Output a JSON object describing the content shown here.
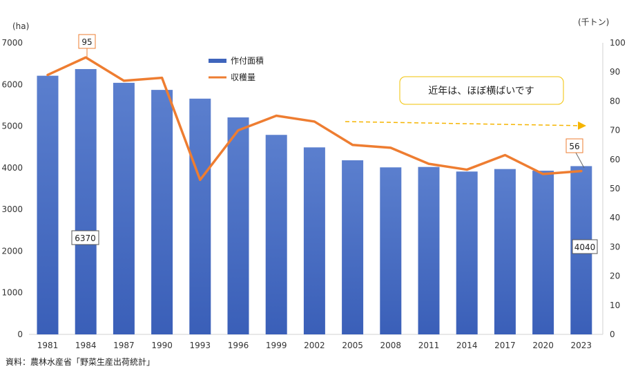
{
  "chart_data": {
    "type": "bar+line",
    "categories": [
      "1981",
      "1984",
      "1987",
      "1990",
      "1993",
      "1996",
      "1999",
      "2002",
      "2005",
      "2008",
      "2011",
      "2014",
      "2017",
      "2020",
      "2023"
    ],
    "series": [
      {
        "name": "作付面積",
        "type": "bar",
        "axis": "left",
        "values": [
          6210,
          6370,
          6040,
          5870,
          5660,
          5210,
          4790,
          4490,
          4180,
          4010,
          4020,
          3910,
          3970,
          3930,
          4040
        ]
      },
      {
        "name": "収穫量",
        "type": "line",
        "axis": "right",
        "values": [
          89,
          95,
          87,
          88,
          53,
          70,
          75,
          73,
          65,
          64,
          58.5,
          56.5,
          61.5,
          55,
          56
        ]
      }
    ],
    "left_axis": {
      "unit": "(ha)",
      "ylim": [
        0,
        7000
      ],
      "ticks": [
        0,
        1000,
        2000,
        3000,
        4000,
        5000,
        6000,
        7000
      ]
    },
    "right_axis": {
      "unit": "(千トン)",
      "ylim": [
        0,
        100
      ],
      "ticks": [
        0,
        10,
        20,
        30,
        40,
        50,
        60,
        70,
        80,
        90,
        100
      ]
    },
    "callouts": {
      "bar_1984": "6370",
      "bar_2023": "4040",
      "line_1984": "95",
      "line_2023": "56"
    },
    "annotation": "近年は、ほぼ横ばいです",
    "legend_position": "top-left",
    "grid": false,
    "colors": {
      "bar_top": "#5b7fce",
      "bar_bottom": "#3a5fb8",
      "line": "#ee7d31",
      "arrow": "#f5b400",
      "note_border": "#f2c200",
      "callout_border": "#ee7d31"
    }
  },
  "source": "資料：農林水産省「野菜生産出荷統計」"
}
